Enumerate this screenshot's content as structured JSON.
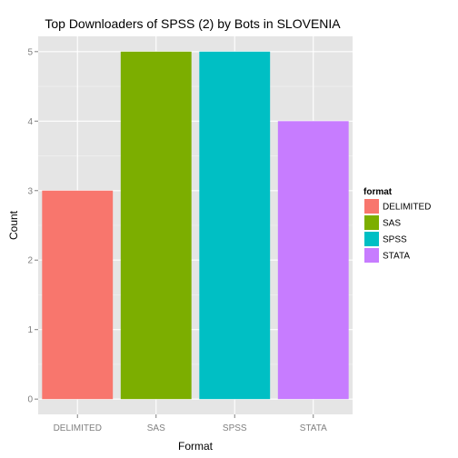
{
  "chart_data": {
    "type": "bar",
    "title": "Top Downloaders of SPSS (2) by Bots in SLOVENIA",
    "xlabel": "Format",
    "ylabel": "Count",
    "categories": [
      "DELIMITED",
      "SAS",
      "SPSS",
      "STATA"
    ],
    "values": [
      3,
      5,
      5,
      4
    ],
    "colors": [
      "#F8766D",
      "#7CAE00",
      "#00BFC4",
      "#C77CFF"
    ],
    "ylim": [
      -0.22,
      5.22
    ],
    "yticks": [
      0,
      1,
      2,
      3,
      4,
      5
    ],
    "grid": true,
    "legend": {
      "title": "format",
      "position": "right",
      "entries": [
        "DELIMITED",
        "SAS",
        "SPSS",
        "STATA"
      ]
    }
  }
}
